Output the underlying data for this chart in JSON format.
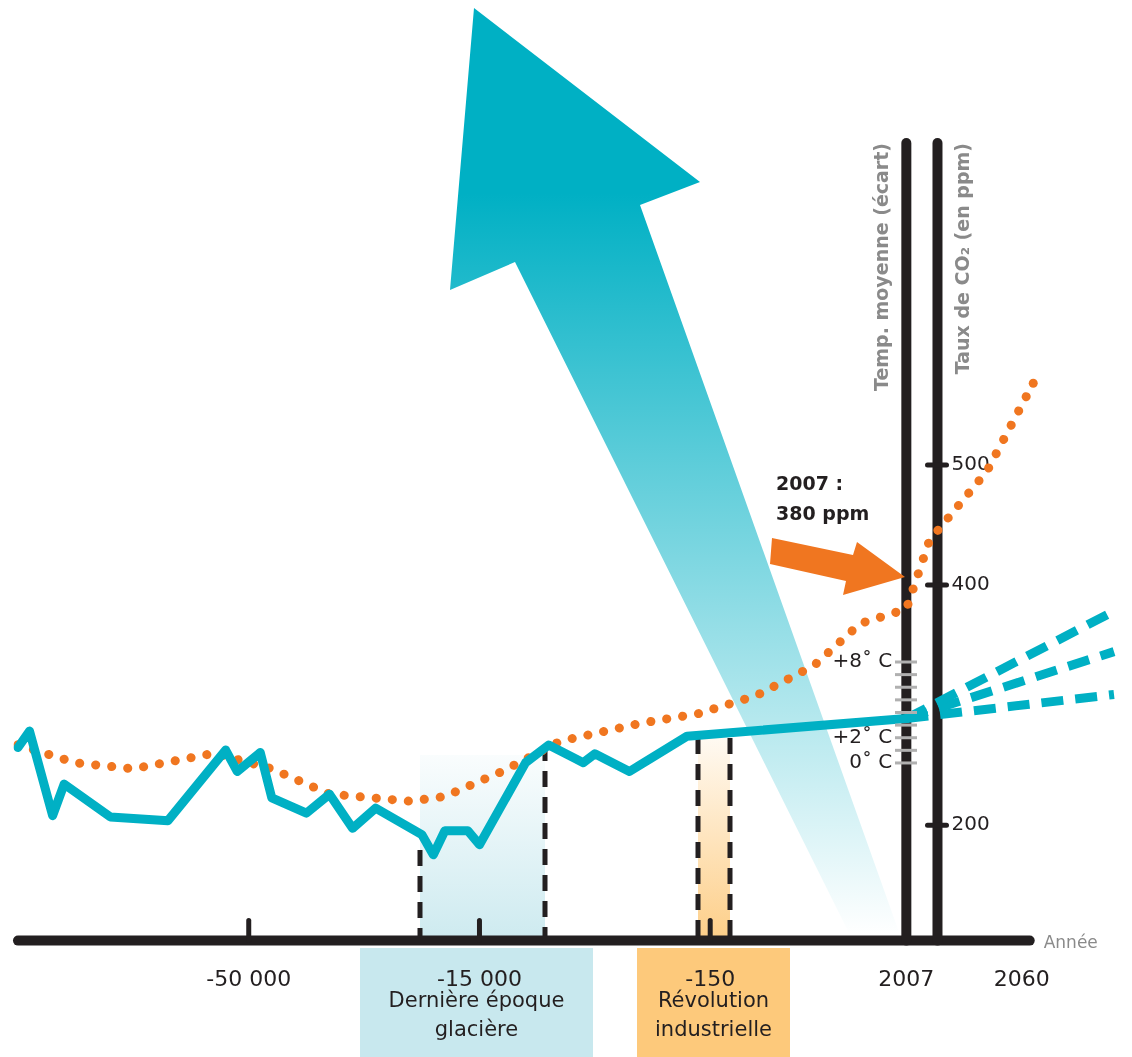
{
  "chart_data": {
    "type": "line",
    "xlabel": "Année",
    "ylabel": "Temp. moyenne (écart)",
    "y2label": "Taux de CO₂ (en ppm)",
    "categories": [
      null,
      null,
      null,
      null,
      null,
      null,
      null,
      null,
      null,
      null,
      null,
      null,
      null,
      null,
      null,
      null,
      null,
      null,
      null,
      null,
      "-50 000",
      null,
      null,
      null,
      null,
      null,
      null,
      null,
      null,
      null,
      null,
      null,
      null,
      null,
      null,
      null,
      null,
      null,
      null,
      null,
      "-15 000",
      null,
      null,
      null,
      null,
      null,
      null,
      null,
      null,
      null,
      null,
      null,
      null,
      null,
      null,
      null,
      null,
      null,
      null,
      null,
      "-150",
      null,
      null,
      null,
      null,
      null,
      null,
      null,
      null,
      null,
      null,
      null,
      null,
      null,
      null,
      null,
      null,
      "2007",
      null,
      null,
      null,
      null,
      null,
      null,
      null,
      null,
      null,
      "2060",
      null,
      null,
      null,
      null,
      null,
      null,
      null,
      null
    ],
    "series": [
      {
        "color": "#00b0c4",
        "line_style": "solid",
        "values": [
          1.2,
          2.5,
          null,
          -4.2,
          -1.7,
          null,
          null,
          null,
          -4.3,
          null,
          null,
          null,
          null,
          -4.6,
          null,
          null,
          null,
          null,
          1,
          -0.7,
          null,
          0.8,
          -2.8,
          null,
          null,
          -4,
          null,
          -2.5,
          null,
          -5.2,
          null,
          -3.6,
          null,
          null,
          null,
          -5.7,
          -7.3,
          -5.4,
          null,
          -5.4,
          -6.5,
          null,
          null,
          null,
          0,
          null,
          1.4,
          null,
          null,
          0,
          0.7,
          null,
          null,
          -0.7,
          null,
          null,
          null,
          null,
          2.1,
          null,
          null,
          null,
          null,
          null,
          null,
          null,
          null,
          null,
          null,
          null,
          null,
          null,
          null,
          null,
          null,
          null,
          null,
          3.5,
          null,
          null,
          null,
          null,
          null,
          null,
          null,
          null,
          null,
          null,
          null,
          null,
          null,
          null,
          null,
          null,
          null,
          null
        ]
      },
      {
        "color": "#00b0c4",
        "line_style": "dashed",
        "values": [
          null,
          null,
          null,
          null,
          null,
          null,
          null,
          null,
          null,
          null,
          null,
          null,
          null,
          null,
          null,
          null,
          null,
          null,
          null,
          null,
          null,
          null,
          null,
          null,
          null,
          null,
          null,
          null,
          null,
          null,
          null,
          null,
          null,
          null,
          null,
          null,
          null,
          null,
          null,
          null,
          null,
          null,
          null,
          null,
          null,
          null,
          null,
          null,
          null,
          null,
          null,
          null,
          null,
          null,
          null,
          null,
          null,
          null,
          null,
          null,
          null,
          null,
          null,
          null,
          null,
          null,
          null,
          null,
          null,
          null,
          null,
          null,
          null,
          null,
          null,
          null,
          null,
          3.5,
          null,
          null,
          null,
          null,
          null,
          null,
          null,
          null,
          null,
          null,
          null,
          null,
          null,
          null,
          null,
          null,
          null,
          12
        ]
      },
      {
        "color": "#00b0c4",
        "line_style": "dashed",
        "values": [
          null,
          null,
          null,
          null,
          null,
          null,
          null,
          null,
          null,
          null,
          null,
          null,
          null,
          null,
          null,
          null,
          null,
          null,
          null,
          null,
          null,
          null,
          null,
          null,
          null,
          null,
          null,
          null,
          null,
          null,
          null,
          null,
          null,
          null,
          null,
          null,
          null,
          null,
          null,
          null,
          null,
          null,
          null,
          null,
          null,
          null,
          null,
          null,
          null,
          null,
          null,
          null,
          null,
          null,
          null,
          null,
          null,
          null,
          null,
          null,
          null,
          null,
          null,
          null,
          null,
          null,
          null,
          null,
          null,
          null,
          null,
          null,
          null,
          null,
          null,
          null,
          null,
          3.5,
          null,
          null,
          null,
          null,
          null,
          null,
          null,
          null,
          null,
          null,
          null,
          null,
          null,
          null,
          null,
          null,
          null,
          8.8
        ]
      },
      {
        "color": "#00b0c4",
        "line_style": "dashed",
        "values": [
          null,
          null,
          null,
          null,
          null,
          null,
          null,
          null,
          null,
          null,
          null,
          null,
          null,
          null,
          null,
          null,
          null,
          null,
          null,
          null,
          null,
          null,
          null,
          null,
          null,
          null,
          null,
          null,
          null,
          null,
          null,
          null,
          null,
          null,
          null,
          null,
          null,
          null,
          null,
          null,
          null,
          null,
          null,
          null,
          null,
          null,
          null,
          null,
          null,
          null,
          null,
          null,
          null,
          null,
          null,
          null,
          null,
          null,
          null,
          null,
          null,
          null,
          null,
          null,
          null,
          null,
          null,
          null,
          null,
          null,
          null,
          null,
          null,
          null,
          null,
          null,
          null,
          3.5,
          null,
          null,
          null,
          null,
          null,
          null,
          null,
          null,
          null,
          null,
          null,
          null,
          null,
          null,
          null,
          null,
          null,
          5.4
        ]
      },
      {
        "color": "#f07620",
        "line_style": "dotted",
        "axis": "y2",
        "values": [
          267,
          null,
          null,
          null,
          null,
          252,
          null,
          null,
          null,
          null,
          247,
          null,
          null,
          null,
          null,
          null,
          null,
          260,
          null,
          null,
          null,
          null,
          247,
          null,
          null,
          null,
          null,
          226,
          null,
          null,
          null,
          null,
          null,
          null,
          220,
          null,
          null,
          224,
          null,
          null,
          null,
          null,
          245,
          null,
          null,
          null,
          null,
          270,
          null,
          null,
          null,
          null,
          null,
          null,
          285,
          null,
          null,
          null,
          null,
          293,
          null,
          null,
          null,
          null,
          308,
          null,
          null,
          null,
          null,
          333,
          null,
          null,
          null,
          368,
          null,
          null,
          null,
          380,
          null,
          437,
          null,
          null,
          null,
          null,
          495,
          null,
          null,
          null,
          568,
          null,
          null,
          null,
          null,
          null,
          null,
          null
        ]
      }
    ],
    "ylim": [
      -14.1,
      49.1
    ],
    "yticks": [
      {
        "value": 0,
        "label": "0˚ C"
      },
      {
        "value": 2,
        "label": "+2˚ C"
      },
      {
        "value": 8,
        "label": "+8˚ C"
      }
    ],
    "y2lim": [
      104,
      768
    ],
    "y2ticks": [
      200,
      400,
      500
    ],
    "annotations": [
      "2007 : 380 ppm",
      "Dernière époque glacière",
      "Révolution industrielle"
    ],
    "marker": "none",
    "grid": false,
    "legend": false
  }
}
